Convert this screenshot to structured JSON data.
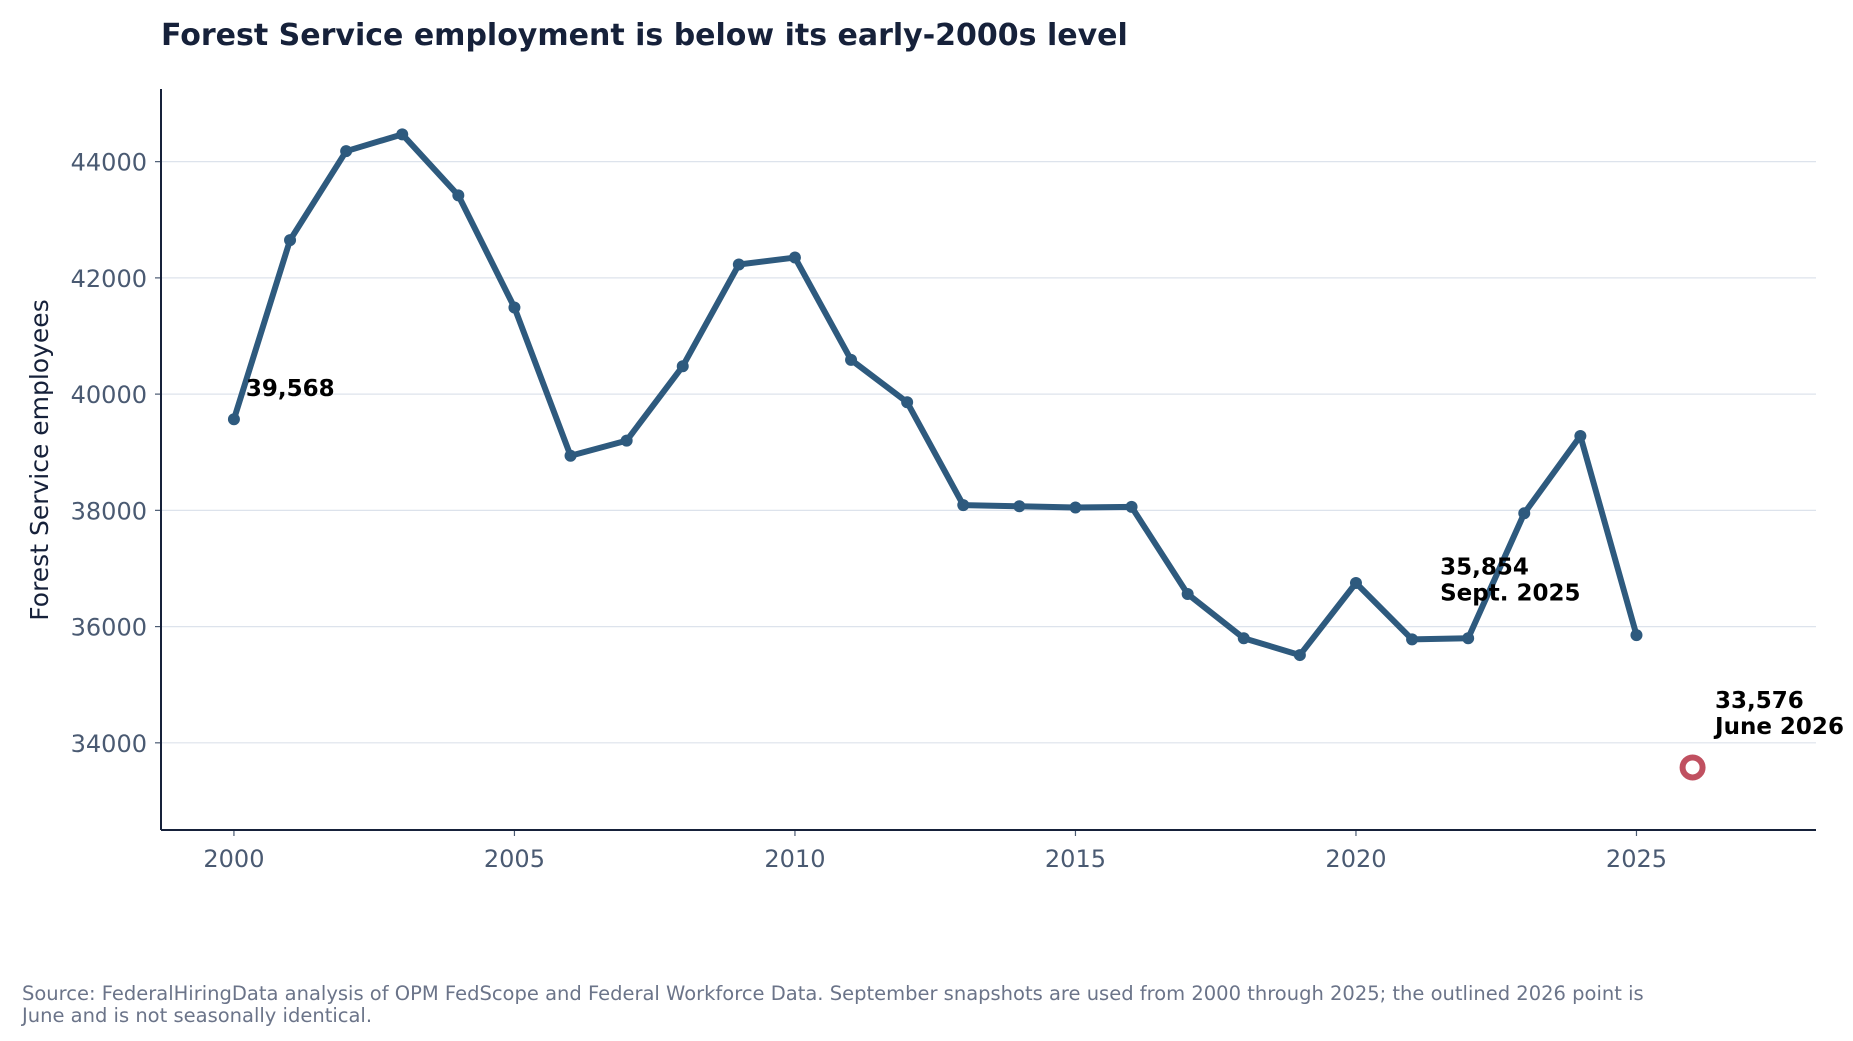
{
  "chart_data": {
    "type": "line",
    "title": "Forest Service employment is below its early-2000s level",
    "xlabel": "",
    "ylabel": "Forest Service employees",
    "xlim": [
      1998.7,
      2028.2
    ],
    "ylim": [
      32500,
      45250
    ],
    "x_ticks": [
      2000,
      2005,
      2010,
      2015,
      2020,
      2025
    ],
    "y_ticks": [
      34000,
      36000,
      38000,
      40000,
      42000,
      44000
    ],
    "grid": "horizontal",
    "series": [
      {
        "x": [
          2000,
          2001,
          2002,
          2003,
          2004,
          2005,
          2006,
          2007,
          2008,
          2009,
          2010,
          2011,
          2012,
          2013,
          2014,
          2015,
          2016,
          2017,
          2018,
          2019,
          2020,
          2021,
          2022,
          2023,
          2024,
          2025
        ],
        "y": [
          39568,
          42650,
          44180,
          44470,
          43420,
          41490,
          38940,
          39200,
          40480,
          42230,
          42350,
          40590,
          39860,
          38090,
          38070,
          38050,
          38060,
          36560,
          35800,
          35510,
          36750,
          35780,
          35800,
          37950,
          39280,
          35854
        ],
        "color": "#2e5a7e"
      }
    ],
    "highlight_point": {
      "x": 2026,
      "y": 33576,
      "style": "outlined",
      "color": "#c05060"
    },
    "annotations": [
      {
        "lines": [
          "39,568"
        ]
      },
      {
        "lines": [
          "35,854",
          "Sept. 2025"
        ]
      },
      {
        "lines": [
          "33,576",
          "June 2026"
        ]
      }
    ]
  },
  "source": "Source: FederalHiringData analysis of OPM FedScope and Federal Workforce Data. September snapshots are used from 2000 through 2025; the outlined 2026 point is June and is not seasonally identical."
}
